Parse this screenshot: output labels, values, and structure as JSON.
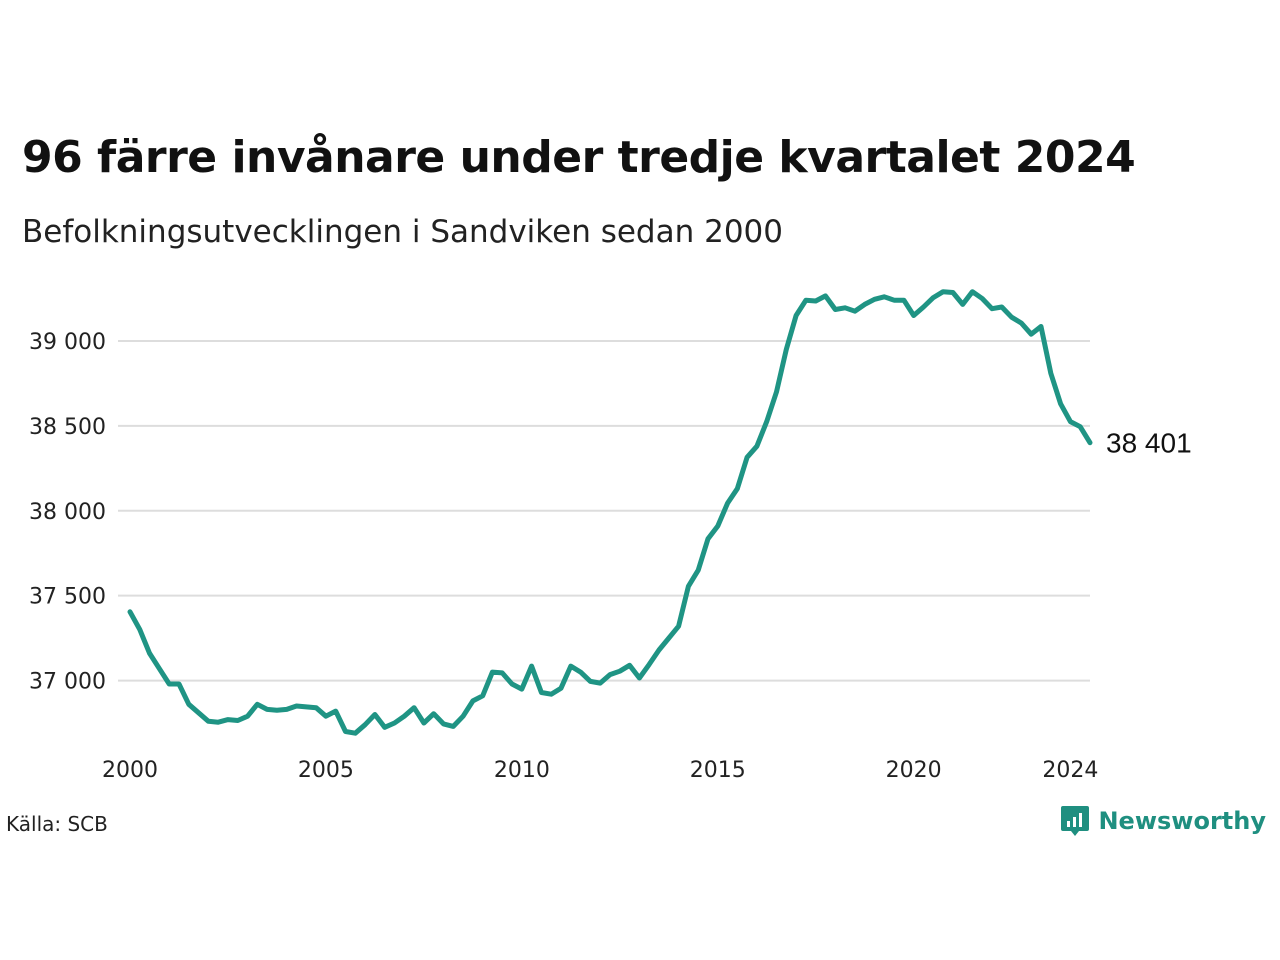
{
  "header": {
    "title": "96 färre invånare under tredje kvartalet 2024",
    "subtitle": "Befolkningsutvecklingen i Sandviken sedan 2000"
  },
  "footer": {
    "source": "Källa: SCB",
    "brand_name": "Newsworthy",
    "brand_icon": "newsworthy-logo-icon"
  },
  "colors": {
    "line": "#1f9484",
    "grid": "#dddddd",
    "brand": "#1f8f80"
  },
  "chart_data": {
    "type": "line",
    "title": "96 färre invånare under tredje kvartalet 2024",
    "subtitle": "Befolkningsutvecklingen i Sandviken sedan 2000",
    "xlabel": "",
    "ylabel": "",
    "ylim": [
      36650,
      39300
    ],
    "xlim": [
      2000.0,
      2024.5
    ],
    "yticks": [
      37000,
      37500,
      38000,
      38500,
      39000
    ],
    "ytick_labels": [
      "37 000",
      "37 500",
      "38 000",
      "38 500",
      "39 000"
    ],
    "xticks": [
      2000,
      2005,
      2010,
      2015,
      2020,
      2024
    ],
    "xtick_labels": [
      "2000",
      "2005",
      "2010",
      "2015",
      "2020",
      "2024"
    ],
    "grid": true,
    "end_label": "38 401",
    "series": [
      {
        "x": [
          2000.0,
          2000.25,
          2000.5,
          2000.75,
          2001.0,
          2001.25,
          2001.5,
          2001.75,
          2002.0,
          2002.25,
          2002.5,
          2002.75,
          2003.0,
          2003.25,
          2003.5,
          2003.75,
          2004.0,
          2004.25,
          2004.5,
          2004.75,
          2005.0,
          2005.25,
          2005.5,
          2005.75,
          2006.0,
          2006.25,
          2006.5,
          2006.75,
          2007.0,
          2007.25,
          2007.5,
          2007.75,
          2008.0,
          2008.25,
          2008.5,
          2008.75,
          2009.0,
          2009.25,
          2009.5,
          2009.75,
          2010.0,
          2010.25,
          2010.5,
          2010.75,
          2011.0,
          2011.25,
          2011.5,
          2011.75,
          2012.0,
          2012.25,
          2012.5,
          2012.75,
          2013.0,
          2013.25,
          2013.5,
          2013.75,
          2014.0,
          2014.25,
          2014.5,
          2014.75,
          2015.0,
          2015.25,
          2015.5,
          2015.75,
          2016.0,
          2016.25,
          2016.5,
          2016.75,
          2017.0,
          2017.25,
          2017.5,
          2017.75,
          2018.0,
          2018.25,
          2018.5,
          2018.75,
          2019.0,
          2019.25,
          2019.5,
          2019.75,
          2020.0,
          2020.25,
          2020.5,
          2020.75,
          2021.0,
          2021.25,
          2021.5,
          2021.75,
          2022.0,
          2022.25,
          2022.5,
          2022.75,
          2023.0,
          2023.25,
          2023.5,
          2023.75,
          2024.0,
          2024.25,
          2024.5
        ],
        "values": [
          37405,
          37300,
          37160,
          37070,
          36980,
          36980,
          36860,
          36810,
          36760,
          36755,
          36770,
          36765,
          36790,
          36860,
          36830,
          36825,
          36830,
          36850,
          36845,
          36840,
          36790,
          36820,
          36700,
          36690,
          36740,
          36800,
          36725,
          36750,
          36790,
          36840,
          36750,
          36805,
          36745,
          36730,
          36790,
          36880,
          36910,
          37050,
          37045,
          36980,
          36950,
          37085,
          36930,
          36920,
          36955,
          37085,
          37050,
          36995,
          36985,
          37035,
          37055,
          37090,
          37015,
          37095,
          37180,
          37250,
          37320,
          37555,
          37650,
          37835,
          37910,
          38045,
          38130,
          38315,
          38380,
          38525,
          38700,
          38950,
          39150,
          39240,
          39235,
          39265,
          39185,
          39195,
          39175,
          39215,
          39245,
          39260,
          39240,
          39240,
          39150,
          39200,
          39255,
          39290,
          39285,
          39215,
          39290,
          39250,
          39190,
          39200,
          39140,
          39105,
          39040,
          39085,
          38810,
          38630,
          38525,
          38495,
          38401
        ]
      }
    ]
  }
}
